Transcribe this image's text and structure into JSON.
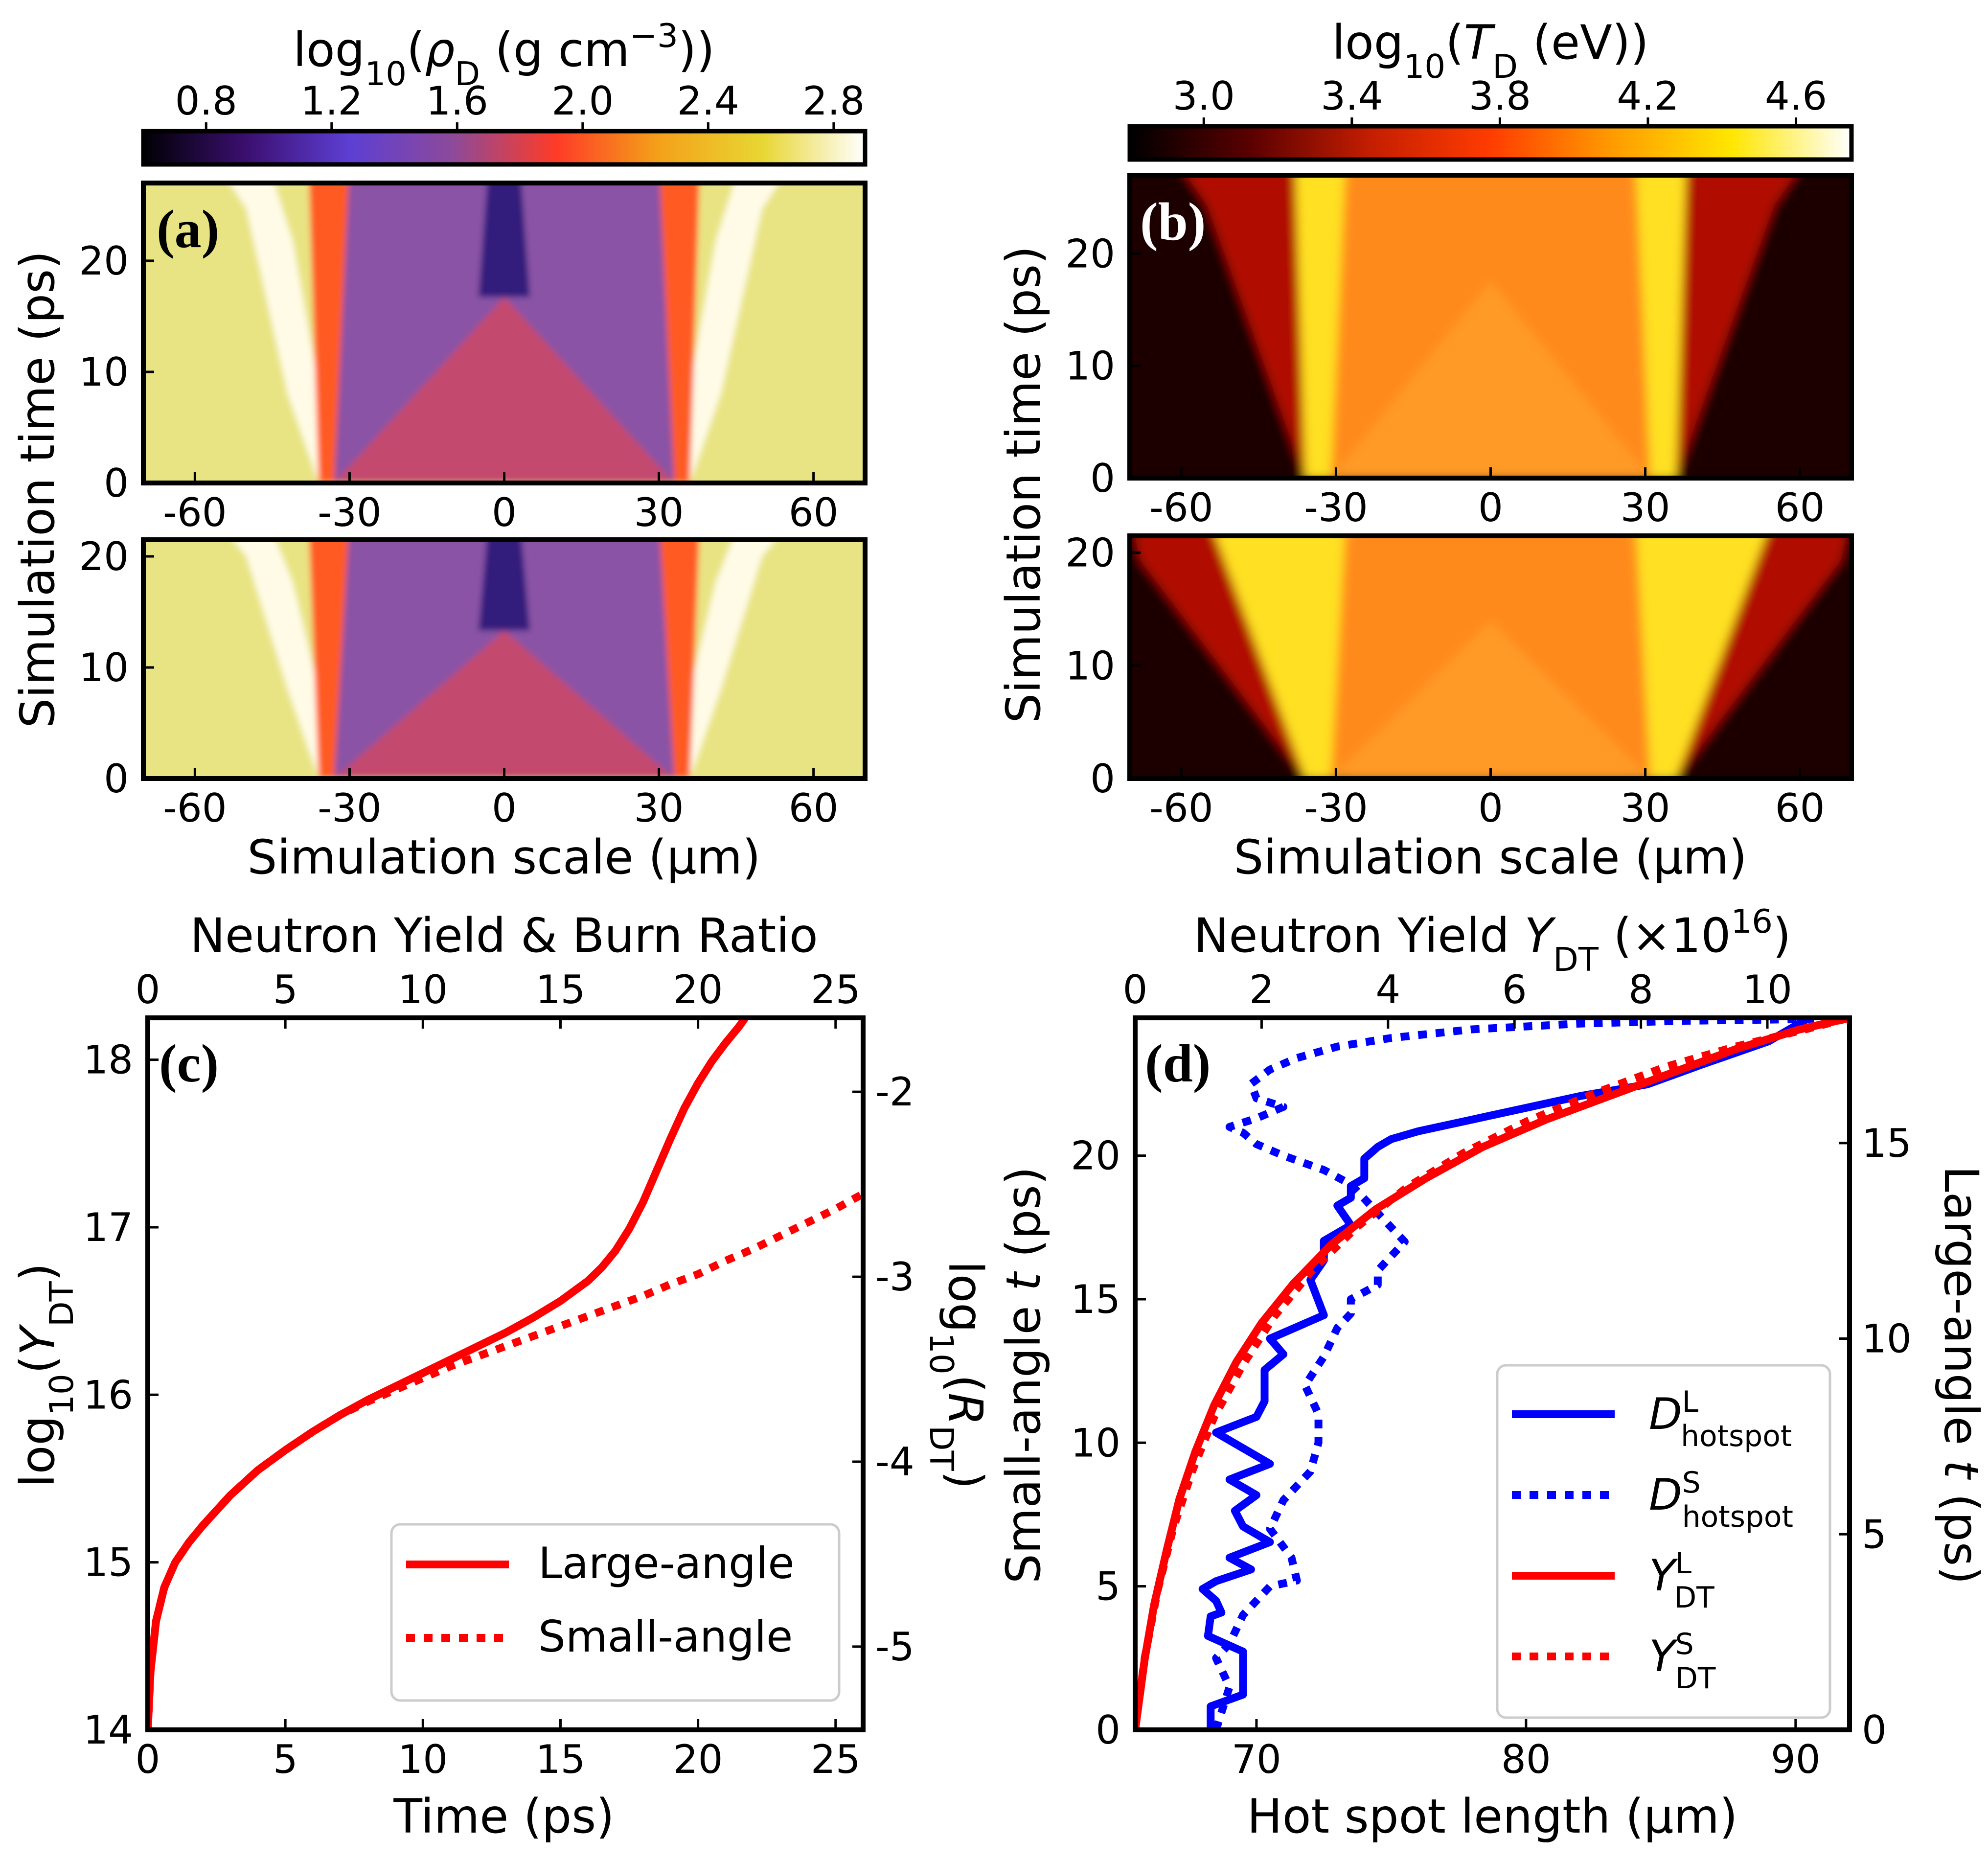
{
  "figure": {
    "panel_labels": [
      "(a)",
      "(b)",
      "(c)",
      "(d)"
    ]
  },
  "chart_data": [
    {
      "type": "heatmap",
      "panel": "(a)",
      "title": "log₁₀(ρD (g cm⁻³))",
      "title_parts": {
        "pre": "log",
        "sub10": "10",
        "mid": "(ρ",
        "subD": "D",
        "post": " (g cm",
        "sup": "−3",
        "end": "))"
      },
      "colorbar_ticks": [
        "0.8",
        "1.2",
        "1.6",
        "2.0",
        "2.4",
        "2.8"
      ],
      "colorbar_range": [
        0.6,
        2.9
      ],
      "colormap": [
        "#000004",
        "#3b0f70",
        "#5d3fd3",
        "#8c4a9a",
        "#fe3b27",
        "#f4a119",
        "#e8d633",
        "#ffffff"
      ],
      "xlabel": "Simulation scale (μm)",
      "ylabel": "Simulation time (ps)",
      "xticks": [
        "-60",
        "-30",
        "0",
        "30",
        "60"
      ],
      "xlim": [
        -70,
        70
      ],
      "top_yticks": [
        "0",
        "10",
        "20"
      ],
      "top_ylim": [
        0,
        27
      ],
      "bottom_yticks": [
        "0",
        "10",
        "20"
      ],
      "bottom_ylim": [
        0,
        21.5
      ],
      "colors": {
        "background": "#e8e483",
        "core": "#8a52a6",
        "inner": "#c44a6e",
        "front": "#ff5a24",
        "shell": "#fffbe6",
        "void": "#1a1070"
      }
    },
    {
      "type": "heatmap",
      "panel": "(b)",
      "title": "log₁₀(TD (eV))",
      "title_parts": {
        "pre": "log",
        "sub10": "10",
        "mid": "(T",
        "subD": "D",
        "post": " (eV))"
      },
      "colorbar_ticks": [
        "3.0",
        "3.4",
        "3.8",
        "4.2",
        "4.6"
      ],
      "colorbar_range": [
        2.8,
        4.75
      ],
      "colormap": [
        "#000000",
        "#5a0000",
        "#c41e00",
        "#ff3c00",
        "#ff9a00",
        "#ffe600",
        "#ffffff"
      ],
      "xlabel": "Simulation scale (μm)",
      "ylabel": "Simulation time (ps)",
      "xticks": [
        "-60",
        "-30",
        "0",
        "30",
        "60"
      ],
      "xlim": [
        -70,
        70
      ],
      "top_yticks": [
        "0",
        "10",
        "20"
      ],
      "top_ylim": [
        0,
        27
      ],
      "bottom_yticks": [
        "0",
        "10",
        "20"
      ],
      "bottom_ylim": [
        0,
        21.5
      ],
      "colors": {
        "background": "#1e0000",
        "core": "#ff8a1e",
        "inner": "#ff9a28",
        "front": "#ffe020",
        "edge": "#b01000"
      }
    },
    {
      "type": "line",
      "panel": "(c)",
      "title": "Neutron Yield & Burn Ratio",
      "xlabel": "Time (ps)",
      "ylabel": "log10(YDT)",
      "ylabel_right": "log10(RDT)",
      "xlim": [
        0,
        26
      ],
      "ylim": [
        14,
        18.25
      ],
      "y2lim": [
        -5.45,
        -1.6
      ],
      "xticks": [
        "0",
        "5",
        "10",
        "15",
        "20",
        "25"
      ],
      "top_xticks": [
        "0",
        "5",
        "10",
        "15",
        "20",
        "25"
      ],
      "yticks": [
        "14",
        "15",
        "16",
        "17",
        "18"
      ],
      "y2ticks": [
        "-5",
        "-4",
        "-3",
        "-2"
      ],
      "series": [
        {
          "name": "Large-angle",
          "style": "solid",
          "color": "#ff0000",
          "x": [
            0,
            0.1,
            0.3,
            0.6,
            1,
            1.5,
            2,
            3,
            4,
            5,
            6,
            7,
            8,
            9,
            10,
            11,
            12,
            13,
            14,
            15,
            16,
            16.5,
            17,
            17.5,
            18,
            18.5,
            19,
            19.5,
            20,
            20.5,
            21,
            21.5,
            21.8
          ],
          "y": [
            14.0,
            14.35,
            14.65,
            14.85,
            15.0,
            15.12,
            15.22,
            15.4,
            15.55,
            15.67,
            15.78,
            15.88,
            15.97,
            16.05,
            16.13,
            16.21,
            16.29,
            16.37,
            16.46,
            16.56,
            16.68,
            16.76,
            16.86,
            16.99,
            17.15,
            17.34,
            17.53,
            17.71,
            17.86,
            17.99,
            18.1,
            18.2,
            18.27
          ]
        },
        {
          "name": "Small-angle",
          "style": "dotted",
          "color": "#ff0000",
          "x": [
            0,
            0.1,
            0.3,
            0.6,
            1,
            1.5,
            2,
            3,
            4,
            5,
            6,
            7,
            8,
            9,
            10,
            11,
            12,
            13,
            14,
            15,
            16,
            17,
            18,
            19,
            20,
            21,
            22,
            23,
            24,
            25,
            26
          ],
          "y": [
            14.0,
            14.35,
            14.65,
            14.85,
            15.0,
            15.12,
            15.22,
            15.4,
            15.55,
            15.67,
            15.78,
            15.88,
            15.96,
            16.03,
            16.1,
            16.17,
            16.23,
            16.29,
            16.35,
            16.41,
            16.47,
            16.53,
            16.59,
            16.66,
            16.72,
            16.8,
            16.87,
            16.95,
            17.03,
            17.11,
            17.2
          ]
        }
      ]
    },
    {
      "type": "line",
      "panel": "(d)",
      "title": "Neutron Yield YDT (×10¹⁶)",
      "xlabel": "Hot spot length (μm)",
      "ylabel": "Small-angle t (ps)",
      "ylabel_right": "Large-angle t (ps)",
      "xlim": [
        65.5,
        92
      ],
      "ylim": [
        0,
        24.8
      ],
      "top_xlim": [
        0,
        11.3
      ],
      "y2lim": [
        0,
        18.2
      ],
      "xticks": [
        "70",
        "80",
        "90"
      ],
      "top_xticks": [
        "0",
        "2",
        "4",
        "6",
        "8",
        "10"
      ],
      "yticks": [
        "0",
        "5",
        "10",
        "15",
        "20"
      ],
      "y2ticks": [
        "0",
        "5",
        "10",
        "15"
      ],
      "series": [
        {
          "name": "D^L_hotspot",
          "style": "solid",
          "color": "#0000ff",
          "axis": "bottom-right",
          "x": [
            68.3,
            68.3,
            69.5,
            69.5,
            68.2,
            68.3,
            68.7,
            68.5,
            68.0,
            68.5,
            69.8,
            69.0,
            70.5,
            69.5,
            69.2,
            70.0,
            69.0,
            70.5,
            69.5,
            68.5,
            70.0,
            70.3,
            70.3,
            71.0,
            70.5,
            71.5,
            72.5,
            72.0,
            72.5,
            72.5,
            73.5,
            73.0,
            73.5,
            73.5,
            74.0,
            74.0,
            74.5,
            75.0,
            76.0,
            78.0,
            80.0,
            82.0,
            84.5,
            86.5,
            89.0,
            90.5
          ],
          "y": [
            0,
            0.6,
            0.9,
            2.0,
            2.4,
            2.9,
            3.0,
            3.3,
            3.6,
            3.8,
            4.1,
            4.4,
            4.8,
            5.2,
            5.6,
            6.0,
            6.4,
            6.8,
            7.2,
            7.6,
            8.0,
            8.4,
            9.2,
            9.6,
            10.0,
            10.3,
            10.6,
            11.5,
            12.0,
            12.5,
            12.9,
            13.4,
            13.6,
            13.9,
            14.1,
            14.6,
            14.9,
            15.1,
            15.3,
            15.6,
            15.9,
            16.2,
            16.5,
            17.0,
            17.6,
            18.2
          ]
        },
        {
          "name": "D^S_hotspot",
          "style": "dotted",
          "color": "#0000ff",
          "axis": "bottom-left",
          "x": [
            68.5,
            69.0,
            68.5,
            69.0,
            69.5,
            70.5,
            71.5,
            71.3,
            70.5,
            71.0,
            72.0,
            72.3,
            72.3,
            71.8,
            72.5,
            73.0,
            73.5,
            73.5,
            74.5,
            74.5,
            75.5,
            74.5,
            73.5,
            72.5,
            71.0,
            70.0,
            69.5,
            69.0,
            70.0,
            71.0,
            70.0,
            69.8,
            70.5,
            71.5,
            73.0,
            75.0,
            78.0,
            82.0,
            86.0,
            90.0,
            91.5
          ],
          "y": [
            0,
            1.5,
            2.5,
            3.0,
            4.0,
            5.0,
            5.2,
            6.0,
            7.0,
            8.0,
            9.0,
            10.0,
            11.0,
            12.0,
            13.0,
            14.0,
            14.5,
            15.0,
            15.5,
            16.0,
            17.0,
            18.0,
            19.0,
            19.5,
            20.0,
            20.4,
            20.8,
            21.0,
            21.3,
            21.7,
            22.0,
            22.5,
            23.0,
            23.4,
            23.8,
            24.1,
            24.4,
            24.6,
            24.7,
            24.75,
            24.8
          ]
        },
        {
          "name": "Y^L_DT",
          "style": "solid",
          "color": "#ff0000",
          "axis": "top-right",
          "x": [
            0,
            0.15,
            0.3,
            0.5,
            0.7,
            0.95,
            1.25,
            1.6,
            2.0,
            2.5,
            3.1,
            3.8,
            4.6,
            5.5,
            6.5,
            7.5,
            8.5,
            9.5,
            10.5,
            11.3
          ],
          "y": [
            0,
            1.8,
            3.2,
            4.6,
            5.9,
            7.1,
            8.3,
            9.4,
            10.4,
            11.4,
            12.4,
            13.3,
            14.1,
            14.9,
            15.6,
            16.2,
            16.8,
            17.4,
            17.9,
            18.2
          ]
        },
        {
          "name": "Y^S_DT",
          "style": "dotted",
          "color": "#ff0000",
          "axis": "top-left",
          "x": [
            0,
            0.15,
            0.35,
            0.6,
            0.9,
            1.25,
            1.7,
            2.2,
            2.8,
            3.5,
            4.3,
            5.2,
            6.2,
            7.3,
            8.4,
            9.5,
            10.6,
            11.3
          ],
          "y": [
            0,
            2.5,
            4.8,
            7.0,
            9.0,
            10.9,
            12.7,
            14.4,
            16.0,
            17.5,
            18.9,
            20.1,
            21.2,
            22.2,
            23.1,
            23.8,
            24.4,
            24.8
          ]
        }
      ]
    }
  ]
}
